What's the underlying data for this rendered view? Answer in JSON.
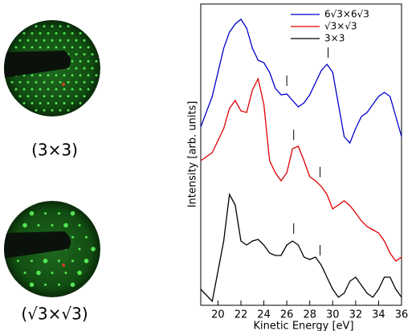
{
  "chart_data": {
    "type": "line",
    "xlabel": "Kinetic Energy [eV]",
    "ylabel": "Intensity [arb. units]",
    "x": [
      18.5,
      19.5,
      20.5,
      21,
      21.5,
      22,
      22.5,
      23,
      23.5,
      24,
      24.5,
      25,
      25.5,
      26,
      26.5,
      27,
      27.5,
      28,
      28.5,
      29,
      29.5,
      30,
      30.5,
      31,
      31.5,
      32,
      32.5,
      33,
      33.5,
      34,
      34.5,
      35,
      35.5,
      36
    ],
    "xlim": [
      18.5,
      36
    ],
    "xticks": [
      20,
      22,
      24,
      26,
      28,
      30,
      32,
      34,
      36
    ],
    "ylim": [
      0,
      375
    ],
    "legend": "upper right",
    "series": [
      {
        "name": "6√3×6√3",
        "color": "#0000cc",
        "marker_x": [
          26,
          29.6
        ],
        "values": [
          222,
          260,
          320,
          340,
          350,
          356,
          345,
          320,
          305,
          302,
          290,
          270,
          262,
          263,
          255,
          247,
          252,
          262,
          277,
          292,
          300,
          290,
          250,
          210,
          202,
          220,
          235,
          240,
          250,
          260,
          265,
          260,
          235,
          210
        ]
      },
      {
        "name": "√3×√3",
        "color": "#dd0000",
        "marker_x": [
          26.6,
          28.9
        ],
        "values": [
          180,
          190,
          220,
          245,
          255,
          242,
          240,
          268,
          282,
          250,
          180,
          165,
          155,
          165,
          195,
          198,
          180,
          160,
          155,
          148,
          138,
          120,
          125,
          130,
          124,
          115,
          105,
          98,
          94,
          90,
          80,
          65,
          55,
          60
        ]
      },
      {
        "name": "3×3",
        "color": "#000000",
        "marker_x": [
          26.6,
          28.9
        ],
        "values": [
          20,
          5,
          80,
          138,
          125,
          80,
          75,
          80,
          82,
          75,
          65,
          62,
          62,
          75,
          80,
          75,
          60,
          57,
          60,
          50,
          35,
          20,
          10,
          15,
          30,
          35,
          25,
          15,
          10,
          20,
          35,
          35,
          20,
          10
        ]
      }
    ]
  },
  "panels": [
    {
      "caption": "(3×3)"
    },
    {
      "caption": "(√3×√3)"
    }
  ]
}
